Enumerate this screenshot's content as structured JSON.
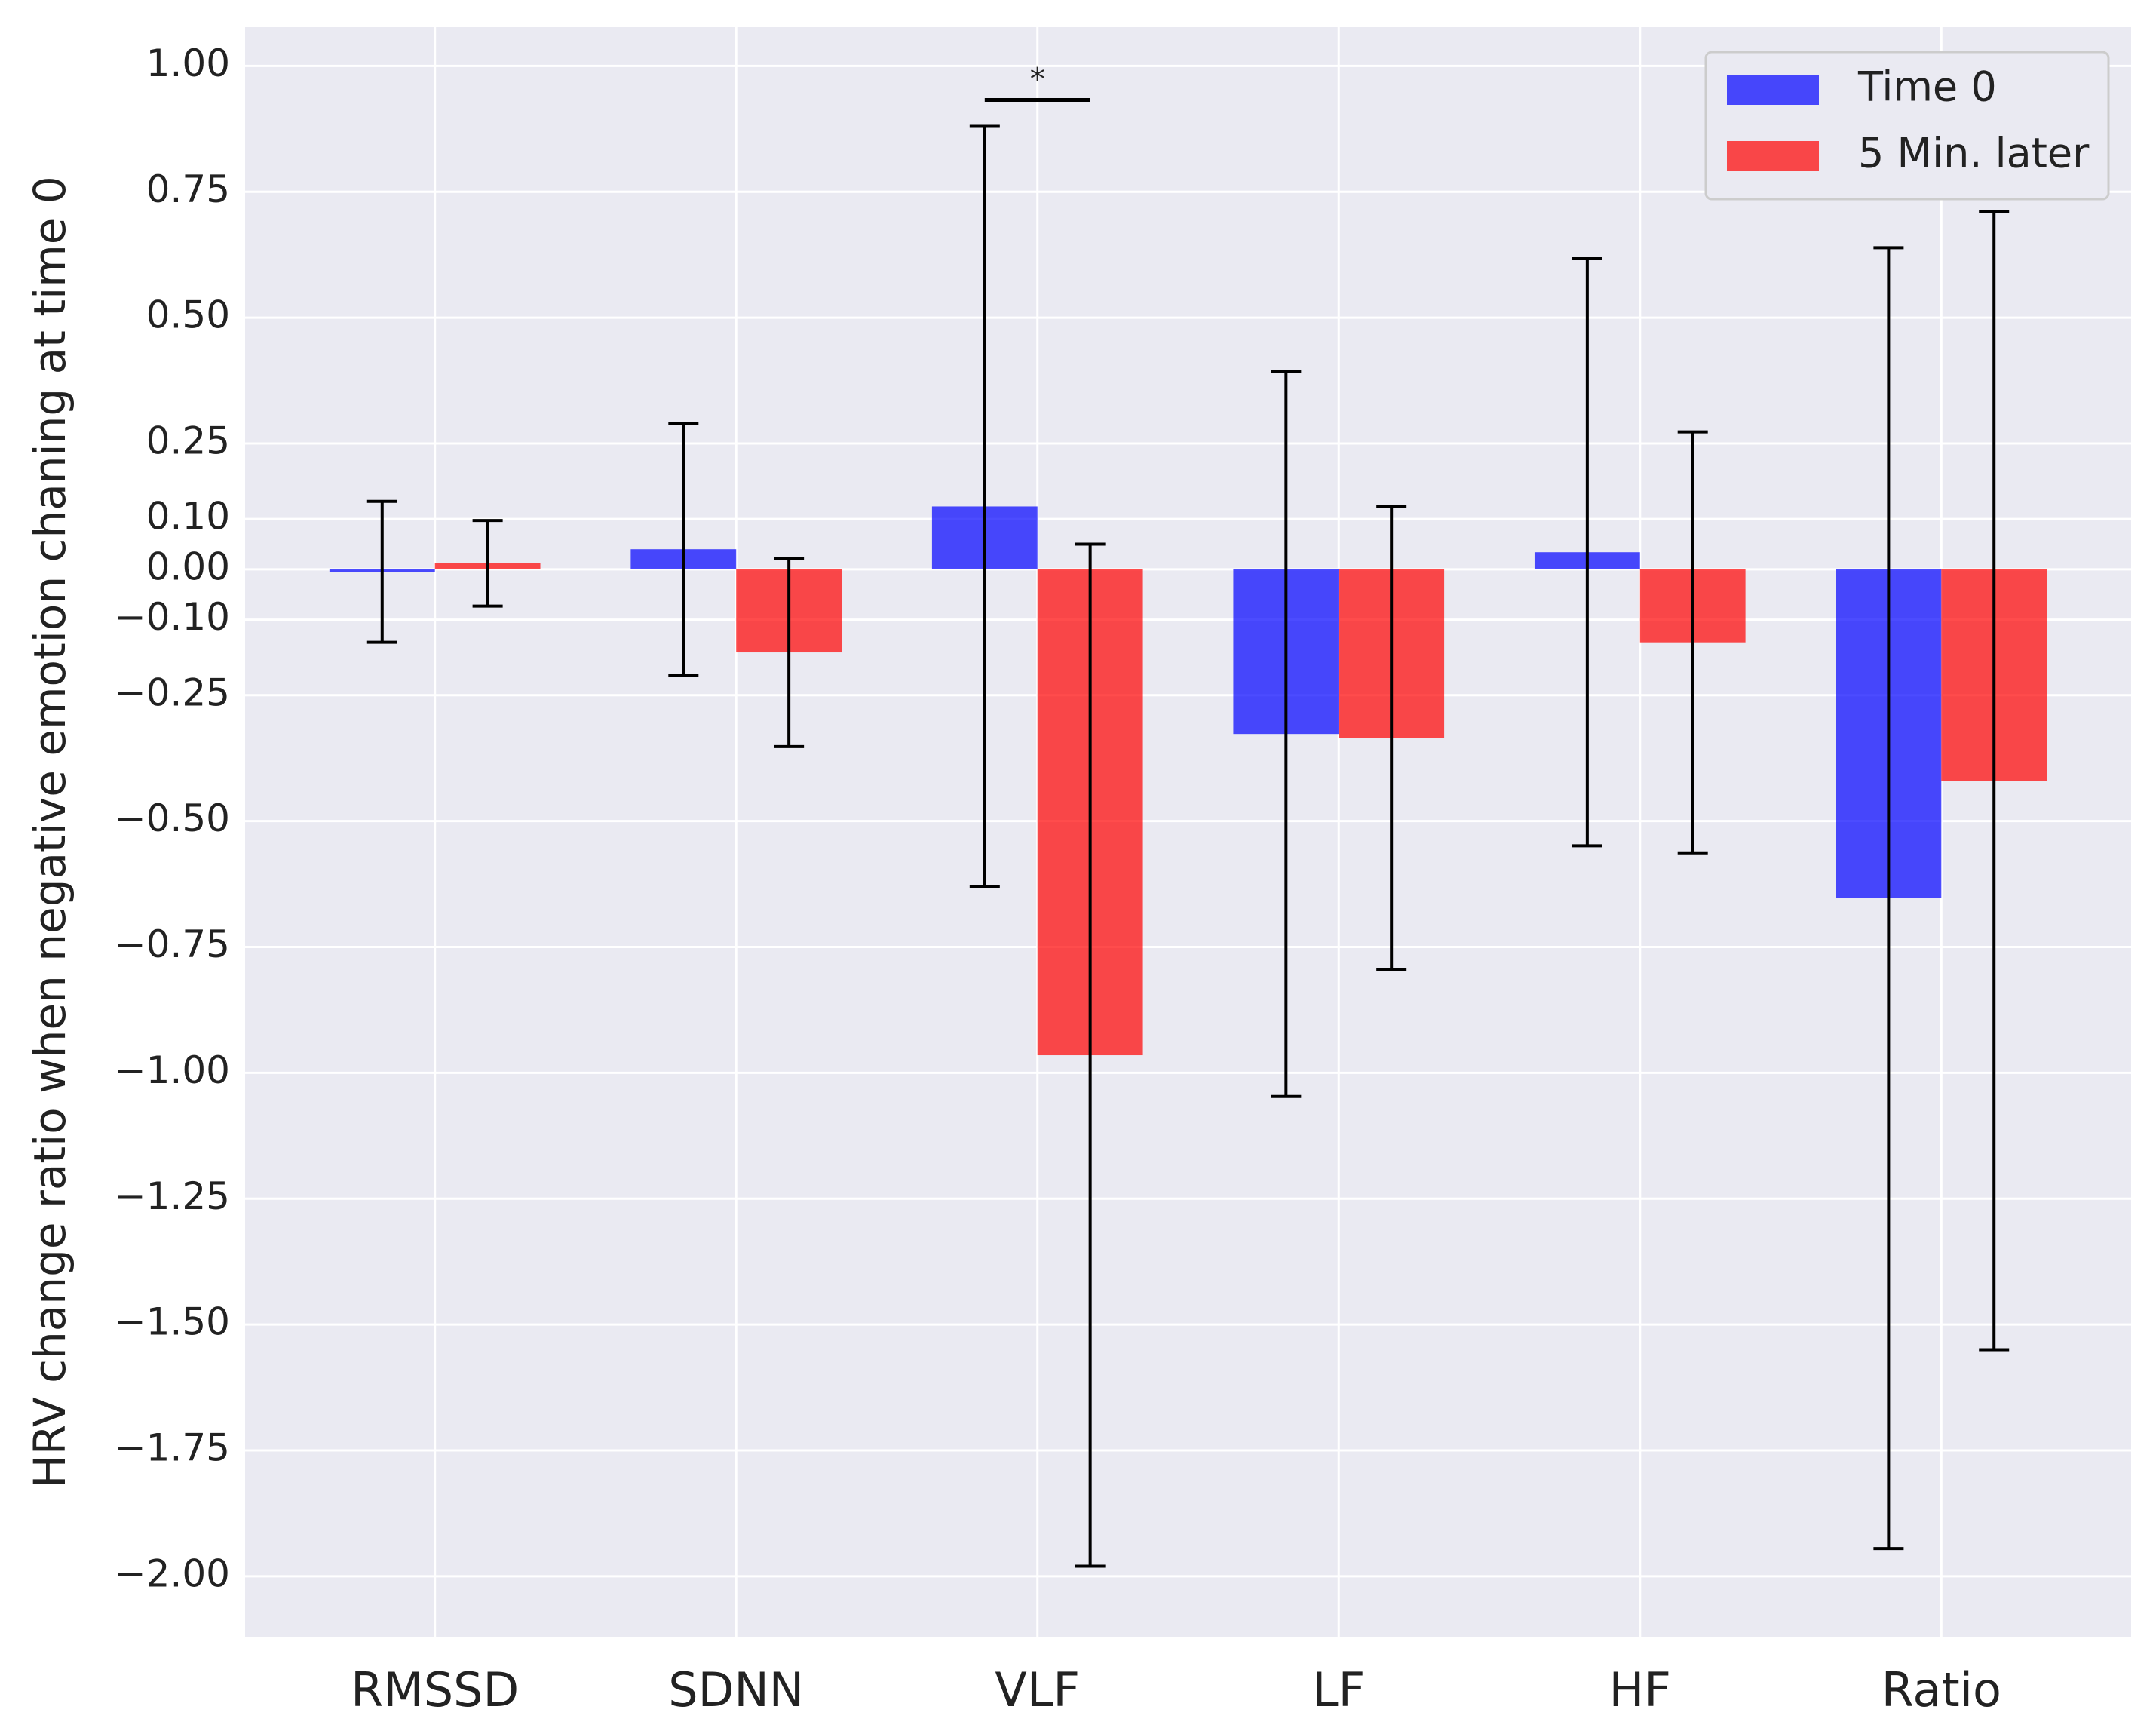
{
  "chart_data": {
    "type": "bar",
    "y_label": "HRV change ratio when negative emotion chaning at time 0",
    "categories": [
      "RMSSD",
      "SDNN",
      "VLF",
      "LF",
      "HF",
      "Ratio"
    ],
    "series": [
      {
        "name": "Time 0",
        "color": "#0000ff",
        "values": [
          -0.005,
          0.04,
          0.125,
          -0.327,
          0.034,
          -0.653
        ],
        "errors": [
          0.14,
          0.25,
          0.755,
          0.72,
          0.583,
          1.292
        ]
      },
      {
        "name": "5 Min. later",
        "color": "#ff0000",
        "values": [
          0.012,
          -0.165,
          -0.965,
          -0.335,
          -0.145,
          -0.42
        ],
        "errors": [
          0.085,
          0.187,
          1.015,
          0.46,
          0.418,
          1.13
        ]
      }
    ],
    "ylim": [
      -2.12,
      1.077
    ],
    "yticks": [
      {
        "value": 1,
        "label": "1.00"
      },
      {
        "value": 0.75,
        "label": "0.75"
      },
      {
        "value": 0.5,
        "label": "0.50"
      },
      {
        "value": 0.25,
        "label": "0.25"
      },
      {
        "value": 0.1,
        "label": "0.10"
      },
      {
        "value": 0,
        "label": "0.00"
      },
      {
        "value": -0.1,
        "label": "−0.10"
      },
      {
        "value": -0.25,
        "label": "−0.25"
      },
      {
        "value": -0.5,
        "label": "−0.50"
      },
      {
        "value": -0.75,
        "label": "−0.75"
      },
      {
        "value": -1,
        "label": "−1.00"
      },
      {
        "value": -1.25,
        "label": "−1.25"
      },
      {
        "value": -1.5,
        "label": "−1.50"
      },
      {
        "value": -1.75,
        "label": "−1.75"
      },
      {
        "value": -2,
        "label": "−2.00"
      }
    ],
    "grid": true,
    "legend": "upper-right",
    "annotations": [
      {
        "text": "*"
      }
    ]
  }
}
